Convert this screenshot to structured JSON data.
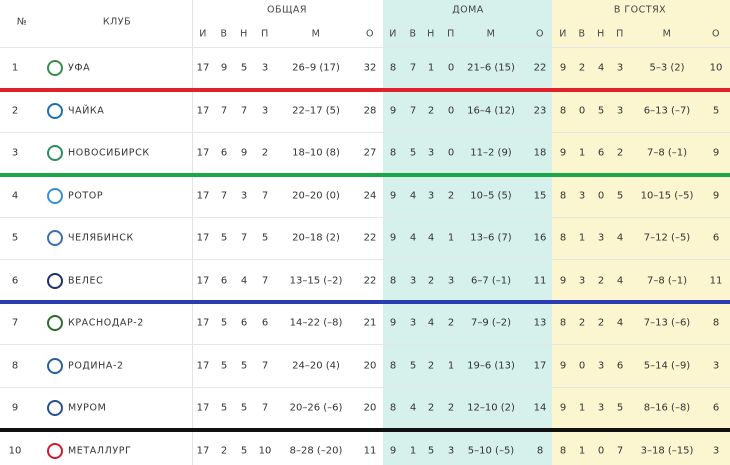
{
  "header": {
    "number": "№",
    "club": "КЛУБ",
    "groups": [
      {
        "title": "ОБЩАЯ",
        "columns": [
          "И",
          "В",
          "Н",
          "П",
          "М",
          "О"
        ]
      },
      {
        "title": "ДОМА",
        "columns": [
          "И",
          "В",
          "Н",
          "П",
          "М",
          "О"
        ]
      },
      {
        "title": "В ГОСТЯХ",
        "columns": [
          "И",
          "В",
          "Н",
          "П",
          "М",
          "О"
        ]
      }
    ]
  },
  "table": {
    "rows": [
      {
        "rank": 1,
        "club": "УФА",
        "overall": [
          17,
          9,
          5,
          3,
          "26–9 (17)",
          32
        ],
        "home": [
          8,
          7,
          1,
          0,
          "21–6 (15)",
          22
        ],
        "away": [
          9,
          2,
          4,
          3,
          "5–3 (2)",
          10
        ]
      },
      {
        "rank": 2,
        "club": "ЧАЙКА",
        "overall": [
          17,
          7,
          7,
          3,
          "22–17 (5)",
          28
        ],
        "home": [
          9,
          7,
          2,
          0,
          "16–4 (12)",
          23
        ],
        "away": [
          8,
          0,
          5,
          3,
          "6–13 (–7)",
          5
        ]
      },
      {
        "rank": 3,
        "club": "НОВОСИБИРСК",
        "overall": [
          17,
          6,
          9,
          2,
          "18–10 (8)",
          27
        ],
        "home": [
          8,
          5,
          3,
          0,
          "11–2 (9)",
          18
        ],
        "away": [
          9,
          1,
          6,
          2,
          "7–8 (–1)",
          9
        ]
      },
      {
        "rank": 4,
        "club": "РОТОР",
        "overall": [
          17,
          7,
          3,
          7,
          "20–20 (0)",
          24
        ],
        "home": [
          9,
          4,
          3,
          2,
          "10–5 (5)",
          15
        ],
        "away": [
          8,
          3,
          0,
          5,
          "10–15 (–5)",
          9
        ]
      },
      {
        "rank": 5,
        "club": "ЧЕЛЯБИНСК",
        "overall": [
          17,
          5,
          7,
          5,
          "20–18 (2)",
          22
        ],
        "home": [
          9,
          4,
          4,
          1,
          "13–6 (7)",
          16
        ],
        "away": [
          8,
          1,
          3,
          4,
          "7–12 (–5)",
          6
        ]
      },
      {
        "rank": 6,
        "club": "ВЕЛЕС",
        "overall": [
          17,
          6,
          4,
          7,
          "13–15 (–2)",
          22
        ],
        "home": [
          8,
          3,
          2,
          3,
          "6–7 (–1)",
          11
        ],
        "away": [
          9,
          3,
          2,
          4,
          "7–8 (–1)",
          11
        ]
      },
      {
        "rank": 7,
        "club": "КРАСНОДАР-2",
        "overall": [
          17,
          5,
          6,
          6,
          "14–22 (–8)",
          21
        ],
        "home": [
          9,
          3,
          4,
          2,
          "7–9 (–2)",
          13
        ],
        "away": [
          8,
          2,
          2,
          4,
          "7–13 (–6)",
          8
        ]
      },
      {
        "rank": 8,
        "club": "РОДИНА-2",
        "overall": [
          17,
          5,
          5,
          7,
          "24–20 (4)",
          20
        ],
        "home": [
          8,
          5,
          2,
          1,
          "19–6 (13)",
          17
        ],
        "away": [
          9,
          0,
          3,
          6,
          "5–14 (–9)",
          3
        ]
      },
      {
        "rank": 9,
        "club": "МУРОМ",
        "overall": [
          17,
          5,
          5,
          7,
          "20–26 (–6)",
          20
        ],
        "home": [
          8,
          4,
          2,
          2,
          "12–10 (2)",
          14
        ],
        "away": [
          9,
          1,
          3,
          5,
          "8–16 (–8)",
          6
        ]
      },
      {
        "rank": 10,
        "club": "МЕТАЛЛУРГ",
        "overall": [
          17,
          2,
          5,
          10,
          "8–28 (–20)",
          11
        ],
        "home": [
          9,
          1,
          5,
          3,
          "5–10 (–5)",
          8
        ],
        "away": [
          8,
          1,
          0,
          7,
          "3–18 (–15)",
          3
        ]
      }
    ]
  }
}
